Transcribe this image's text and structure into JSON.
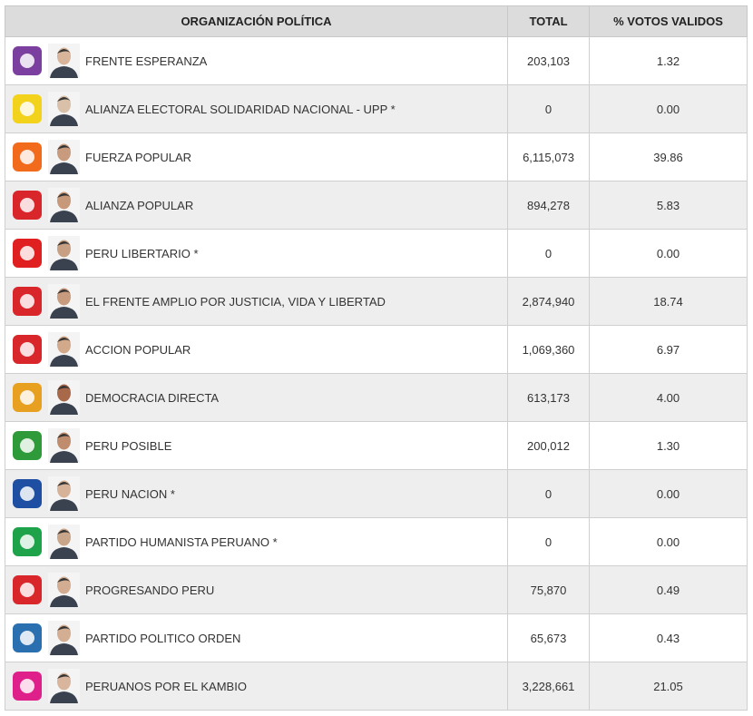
{
  "table": {
    "headers": [
      "ORGANIZACIÓN POLÍTICA",
      "TOTAL",
      "% VOTOS VALIDOS"
    ],
    "rows": [
      [
        "FRENTE ESPERANZA",
        "203,103",
        "1.32"
      ],
      [
        "ALIANZA ELECTORAL SOLIDARIDAD NACIONAL - UPP *",
        "0",
        "0.00"
      ],
      [
        "FUERZA POPULAR",
        "6,115,073",
        "39.86"
      ],
      [
        "ALIANZA POPULAR",
        "894,278",
        "5.83"
      ],
      [
        "PERU LIBERTARIO *",
        "0",
        "0.00"
      ],
      [
        "EL FRENTE AMPLIO POR JUSTICIA, VIDA Y LIBERTAD",
        "2,874,940",
        "18.74"
      ],
      [
        "ACCION POPULAR",
        "1,069,360",
        "6.97"
      ],
      [
        "DEMOCRACIA DIRECTA",
        "613,173",
        "4.00"
      ],
      [
        "PERU POSIBLE",
        "200,012",
        "1.30"
      ],
      [
        "PERU NACION *",
        "0",
        "0.00"
      ],
      [
        "PARTIDO HUMANISTA PERUANO *",
        "0",
        "0.00"
      ],
      [
        "PROGRESANDO PERU",
        "75,870",
        "0.49"
      ],
      [
        "PARTIDO POLITICO ORDEN",
        "65,673",
        "0.43"
      ],
      [
        "PERUANOS POR EL KAMBIO",
        "3,228,661",
        "21.05"
      ]
    ]
  }
}
